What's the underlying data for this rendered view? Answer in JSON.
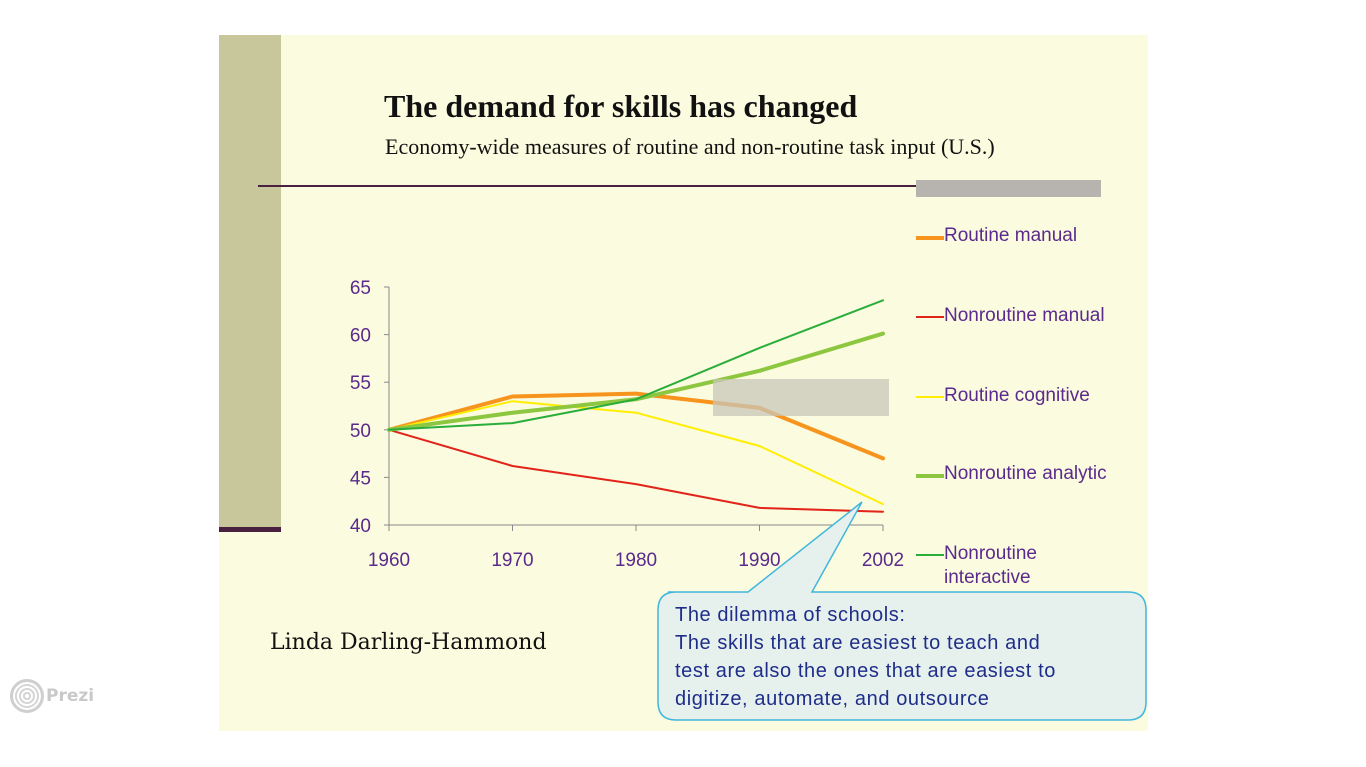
{
  "slide": {
    "title": "The demand for skills has changed",
    "subtitle": "Economy-wide measures of routine and non-routine task input (U.S.)",
    "author": "Linda Darling-Hammond"
  },
  "callout": {
    "lines": [
      "The dilemma of schools:",
      "The skills that are easiest to teach and",
      "test are also the ones that are easiest to",
      "digitize, automate, and outsource"
    ]
  },
  "branding": {
    "logo_text": "Prezi"
  },
  "colors": {
    "slide_bg": "#fbfbdf",
    "side_bar": "#c8c69b",
    "rule": "#4a2040",
    "axis_text": "#5a2a8c",
    "callout_bg": "#e6f1ed",
    "callout_border": "#3fb6dc",
    "callout_text": "#1f2d8a"
  },
  "chart_data": {
    "type": "line",
    "x": [
      "1960",
      "1970",
      "1980",
      "1990",
      "2002"
    ],
    "yticks": [
      40,
      45,
      50,
      55,
      60,
      65
    ],
    "ylim": [
      40,
      65
    ],
    "grid": false,
    "legend_position": "right",
    "series": [
      {
        "name": "Routine manual",
        "color": "#f7941d",
        "values": [
          50,
          53.5,
          53.8,
          52.3,
          47
        ]
      },
      {
        "name": "Nonroutine manual",
        "color": "#e2231a",
        "values": [
          50,
          46.2,
          44.3,
          41.8,
          41.4
        ]
      },
      {
        "name": "Routine cognitive",
        "color": "#ffee00",
        "values": [
          50,
          53.0,
          51.8,
          48.3,
          42.2
        ]
      },
      {
        "name": "Nonroutine analytic",
        "color": "#8dc63f",
        "values": [
          50,
          51.8,
          53.2,
          56.2,
          60.1
        ]
      },
      {
        "name": "Nonroutine interactive",
        "color": "#2aad3a",
        "values": [
          50,
          50.7,
          53.2,
          58.6,
          63.6
        ]
      }
    ]
  }
}
